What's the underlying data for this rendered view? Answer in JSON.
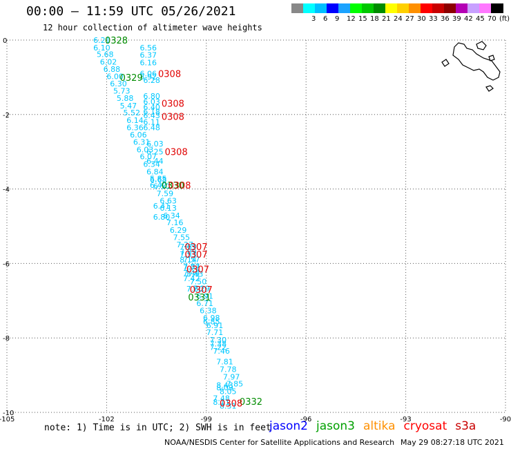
{
  "header": {
    "title": "00:00 – 11:59 UTC 05/26/2021",
    "subtitle": "12 hour collection of altimeter wave heights"
  },
  "legend": {
    "swatches": [
      {
        "color": "#888888",
        "label": ""
      },
      {
        "color": "#00ffff",
        "label": "3"
      },
      {
        "color": "#00bfff",
        "label": "6"
      },
      {
        "color": "#0000ff",
        "label": "9"
      },
      {
        "color": "#1ba3ff",
        "label": "12"
      },
      {
        "color": "#00ff00",
        "label": "15"
      },
      {
        "color": "#00c800",
        "label": "18"
      },
      {
        "color": "#008c00",
        "label": "21"
      },
      {
        "color": "#ffff00",
        "label": "24"
      },
      {
        "color": "#ffd000",
        "label": "27"
      },
      {
        "color": "#ff9000",
        "label": "30"
      },
      {
        "color": "#ff0000",
        "label": "33"
      },
      {
        "color": "#c80000",
        "label": "36"
      },
      {
        "color": "#8c0000",
        "label": "39"
      },
      {
        "color": "#b400b4",
        "label": "42"
      },
      {
        "color": "#c8a0ff",
        "label": "45"
      },
      {
        "color": "#ff78ff",
        "label": "70"
      },
      {
        "color": "#000000",
        "label": "(ft)"
      }
    ]
  },
  "note": "note: 1) Time is in UTC; 2) SWH is in feet",
  "satellites": [
    {
      "name": "jason2",
      "color": "#0000ff"
    },
    {
      "name": "jason3",
      "color": "#00a000"
    },
    {
      "name": "altika",
      "color": "#ff9000"
    },
    {
      "name": "cryosat",
      "color": "#ff0000"
    },
    {
      "name": "s3a",
      "color": "#c80000"
    }
  ],
  "credit": "NOAA/NESDIS Center for Satellite Applications and Research",
  "generated": "May 29 08:27:18 UTC 2021",
  "chart_data": {
    "type": "scatter",
    "xlim": [
      -105,
      -90
    ],
    "ylim": [
      -10,
      0
    ],
    "x_ticks": [
      "-105",
      "-102",
      "-99",
      "-96",
      "-93",
      "-90"
    ],
    "y_ticks": [
      "0",
      "-2",
      "-4",
      "-6",
      "-8",
      "-10"
    ],
    "grid": true,
    "wave_color": "#00c8ff",
    "time_color_jason3": "#008c00",
    "time_color_cryosat": "#e00000",
    "points": [
      {
        "x": -102.4,
        "y": 0.0,
        "v": "6.21"
      },
      {
        "x": -102.4,
        "y": -0.2,
        "v": "6.10"
      },
      {
        "x": -102.3,
        "y": -0.38,
        "v": "5.68"
      },
      {
        "x": -102.2,
        "y": -0.58,
        "v": "6.02"
      },
      {
        "x": -102.1,
        "y": -0.78,
        "v": "6.88"
      },
      {
        "x": -102.0,
        "y": -0.97,
        "v": "6.00"
      },
      {
        "x": -101.9,
        "y": -1.17,
        "v": "6.30"
      },
      {
        "x": -101.8,
        "y": -1.36,
        "v": "5.73"
      },
      {
        "x": -101.7,
        "y": -1.56,
        "v": "5.88"
      },
      {
        "x": -101.6,
        "y": -1.76,
        "v": "5.47"
      },
      {
        "x": -101.5,
        "y": -1.95,
        "v": "5.52"
      },
      {
        "x": -101.4,
        "y": -2.15,
        "v": "6.14"
      },
      {
        "x": -101.4,
        "y": -2.35,
        "v": "6.36"
      },
      {
        "x": -101.3,
        "y": -2.54,
        "v": "6.06"
      },
      {
        "x": -101.2,
        "y": -2.74,
        "v": "6.31"
      },
      {
        "x": -101.1,
        "y": -2.94,
        "v": "6.03"
      },
      {
        "x": -101.0,
        "y": -3.13,
        "v": "6.07"
      },
      {
        "x": -100.9,
        "y": -3.33,
        "v": "6.34"
      },
      {
        "x": -100.8,
        "y": -3.53,
        "v": "6.84"
      },
      {
        "x": -100.7,
        "y": -3.72,
        "v": "5.85"
      },
      {
        "x": -100.6,
        "y": -3.92,
        "v": "6.50"
      },
      {
        "x": -100.5,
        "y": -4.12,
        "v": "7.59"
      },
      {
        "x": -100.4,
        "y": -4.31,
        "v": "6.63"
      },
      {
        "x": -100.4,
        "y": -4.51,
        "v": "6.13"
      },
      {
        "x": -100.3,
        "y": -4.71,
        "v": "6.34"
      },
      {
        "x": -100.2,
        "y": -4.9,
        "v": "7.16"
      },
      {
        "x": -100.1,
        "y": -5.1,
        "v": "6.29"
      },
      {
        "x": -100.0,
        "y": -5.3,
        "v": "7.55"
      },
      {
        "x": -99.9,
        "y": -5.49,
        "v": "7.27"
      },
      {
        "x": -99.8,
        "y": -5.69,
        "v": "7.89"
      },
      {
        "x": -99.7,
        "y": -5.89,
        "v": "7.57"
      },
      {
        "x": -99.7,
        "y": -6.08,
        "v": "7.87"
      },
      {
        "x": -99.6,
        "y": -6.28,
        "v": "8.43"
      },
      {
        "x": -99.5,
        "y": -6.48,
        "v": "7.50"
      },
      {
        "x": -99.4,
        "y": -6.67,
        "v": "7.29"
      },
      {
        "x": -99.3,
        "y": -6.87,
        "v": "6.91"
      },
      {
        "x": -99.3,
        "y": -7.07,
        "v": "6.71"
      },
      {
        "x": -99.2,
        "y": -7.26,
        "v": "6.38"
      },
      {
        "x": -99.1,
        "y": -7.46,
        "v": "6.98"
      },
      {
        "x": -99.1,
        "y": -7.56,
        "v": "6.85"
      },
      {
        "x": -99.0,
        "y": -7.66,
        "v": "6.91"
      },
      {
        "x": -99.0,
        "y": -7.85,
        "v": "7.71"
      },
      {
        "x": -98.9,
        "y": -8.05,
        "v": "7.30"
      },
      {
        "x": -98.9,
        "y": -8.15,
        "v": "7.38"
      },
      {
        "x": -98.9,
        "y": -8.25,
        "v": "7.22"
      },
      {
        "x": -98.8,
        "y": -8.35,
        "v": "7.46"
      },
      {
        "x": -98.7,
        "y": -8.64,
        "v": "7.81"
      },
      {
        "x": -98.6,
        "y": -8.84,
        "v": "7.78"
      },
      {
        "x": -98.5,
        "y": -9.04,
        "v": "7.97"
      },
      {
        "x": -98.4,
        "y": -9.23,
        "v": "7.85"
      },
      {
        "x": -98.7,
        "y": -9.27,
        "v": "8.43"
      },
      {
        "x": -98.7,
        "y": -9.33,
        "v": "8.09"
      },
      {
        "x": -98.6,
        "y": -9.43,
        "v": "8.05"
      },
      {
        "x": -98.8,
        "y": -9.62,
        "v": "7.48"
      },
      {
        "x": -98.8,
        "y": -9.72,
        "v": "8.11"
      },
      {
        "x": -98.6,
        "y": -9.82,
        "v": "8.31"
      },
      {
        "x": -101.0,
        "y": -0.2,
        "v": "6.56"
      },
      {
        "x": -101.0,
        "y": -0.4,
        "v": "6.37"
      },
      {
        "x": -101.0,
        "y": -0.6,
        "v": "6.16"
      },
      {
        "x": -101.0,
        "y": -0.9,
        "v": "6.06"
      },
      {
        "x": -101.0,
        "y": -0.98,
        "v": "5.92"
      },
      {
        "x": -100.9,
        "y": -1.08,
        "v": "6.28"
      },
      {
        "x": -100.9,
        "y": -1.5,
        "v": "6.80"
      },
      {
        "x": -100.9,
        "y": -1.65,
        "v": "6.03"
      },
      {
        "x": -100.9,
        "y": -1.8,
        "v": "6.40"
      },
      {
        "x": -100.9,
        "y": -1.92,
        "v": "6.18"
      },
      {
        "x": -100.9,
        "y": -2.02,
        "v": "6.43"
      },
      {
        "x": -100.9,
        "y": -2.2,
        "v": "6.11"
      },
      {
        "x": -100.9,
        "y": -2.35,
        "v": "6.48"
      },
      {
        "x": -100.8,
        "y": -2.78,
        "v": "6.03"
      },
      {
        "x": -100.8,
        "y": -3.0,
        "v": "6.25"
      },
      {
        "x": -100.8,
        "y": -3.25,
        "v": "6.44"
      },
      {
        "x": -100.7,
        "y": -3.75,
        "v": "6.68"
      },
      {
        "x": -100.7,
        "y": -3.9,
        "v": "6.42"
      },
      {
        "x": -100.6,
        "y": -4.45,
        "v": "6.41"
      },
      {
        "x": -100.6,
        "y": -4.75,
        "v": "6.80"
      },
      {
        "x": -99.8,
        "y": -5.55,
        "v": "7.69"
      },
      {
        "x": -99.8,
        "y": -5.75,
        "v": "7.53"
      },
      {
        "x": -99.8,
        "y": -5.9,
        "v": "8.14"
      },
      {
        "x": -99.7,
        "y": -6.1,
        "v": "7.72"
      },
      {
        "x": -99.7,
        "y": -6.25,
        "v": "7.44"
      },
      {
        "x": -99.7,
        "y": -6.4,
        "v": "7.42"
      },
      {
        "x": -99.6,
        "y": -6.68,
        "v": "7.80"
      }
    ],
    "labels": [
      {
        "x": -102.05,
        "y": 0.0,
        "text": "0328",
        "sat": "jason3"
      },
      {
        "x": -101.6,
        "y": -1.0,
        "text": "0329",
        "sat": "jason3"
      },
      {
        "x": -100.35,
        "y": -3.9,
        "text": "0330",
        "sat": "jason3"
      },
      {
        "x": -99.55,
        "y": -6.9,
        "text": "0331",
        "sat": "jason3"
      },
      {
        "x": -98.0,
        "y": -9.7,
        "text": "0332",
        "sat": "jason3"
      },
      {
        "x": -100.45,
        "y": -0.9,
        "text": "0308",
        "sat": "cryosat"
      },
      {
        "x": -100.35,
        "y": -1.7,
        "text": "0308",
        "sat": "cryosat"
      },
      {
        "x": -100.35,
        "y": -2.05,
        "text": "0308",
        "sat": "cryosat"
      },
      {
        "x": -100.25,
        "y": -3.0,
        "text": "0308",
        "sat": "cryosat"
      },
      {
        "x": -100.15,
        "y": -3.9,
        "text": "0308",
        "sat": "cryosat"
      },
      {
        "x": -99.65,
        "y": -5.55,
        "text": "0307",
        "sat": "cryosat"
      },
      {
        "x": -99.65,
        "y": -5.75,
        "text": "0307",
        "sat": "cryosat"
      },
      {
        "x": -99.6,
        "y": -6.15,
        "text": "0307",
        "sat": "cryosat"
      },
      {
        "x": -99.5,
        "y": -6.7,
        "text": "0307",
        "sat": "cryosat"
      },
      {
        "x": -98.6,
        "y": -9.75,
        "text": "0308",
        "sat": "cryosat"
      }
    ]
  }
}
